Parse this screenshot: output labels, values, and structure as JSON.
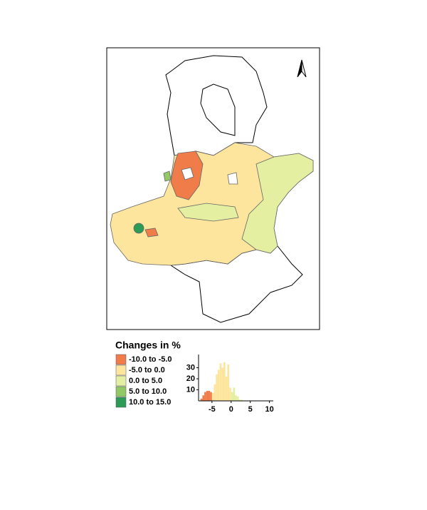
{
  "legend": {
    "title": "Changes in %",
    "classes": [
      {
        "label": "-10.0 to -5.0",
        "min": -10,
        "max": -5,
        "color": "#f07c4a"
      },
      {
        "label": "-5.0 to 0.0",
        "min": -5,
        "max": 0,
        "color": "#fde59d"
      },
      {
        "label": "0.0 to 5.0",
        "min": 0,
        "max": 5,
        "color": "#e4efa2"
      },
      {
        "label": "5.0 to 10.0",
        "min": 5,
        "max": 10,
        "color": "#92c965"
      },
      {
        "label": "10.0 to 15.0",
        "min": 10,
        "max": 15,
        "color": "#2b9b56"
      }
    ]
  },
  "chart_data": {
    "type": "histogram",
    "bins": [
      -8,
      -7.5,
      -7,
      -6.5,
      -6,
      -5.5,
      -5,
      -4.5,
      -4,
      -3.5,
      -3,
      -2.5,
      -2,
      -1.5,
      -1,
      -0.5,
      0,
      0.5,
      1,
      1.5,
      2,
      2.5,
      3
    ],
    "counts": [
      2,
      5,
      8,
      9,
      9,
      8,
      7,
      15,
      24,
      28,
      34,
      30,
      35,
      22,
      33,
      12,
      8,
      12,
      5,
      4,
      1,
      1
    ],
    "xlim": [
      -8.5,
      11
    ],
    "ylim": [
      0,
      42
    ],
    "xticks": [
      -5,
      0,
      5,
      10
    ],
    "yticks": [
      10,
      20,
      30
    ]
  }
}
